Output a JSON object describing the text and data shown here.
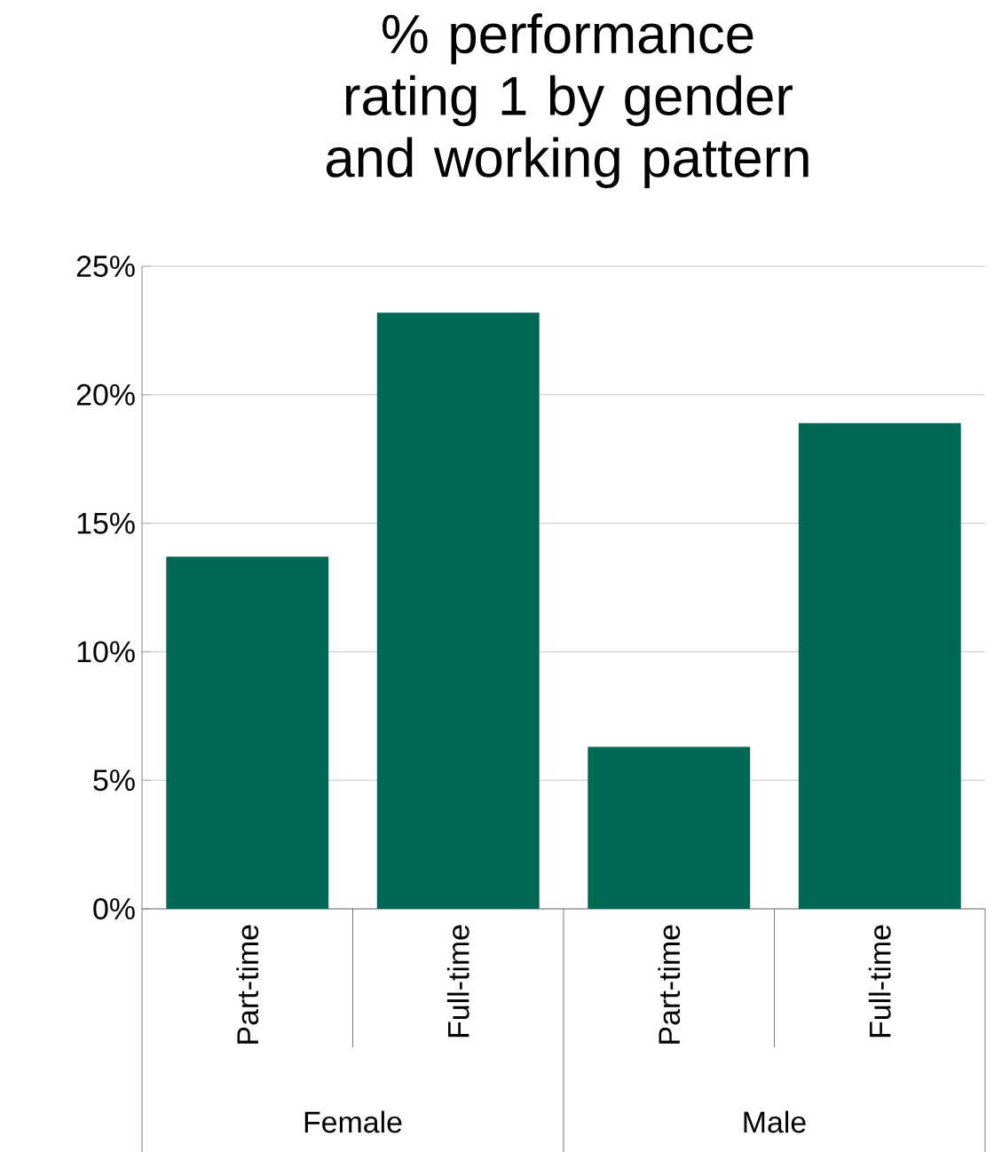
{
  "chart_data": {
    "type": "bar",
    "title": "% performance rating 1 by gender and working pattern",
    "categories": [
      "Part-time",
      "Full-time",
      "Part-time",
      "Full-time"
    ],
    "values": [
      13.7,
      23.2,
      6.3,
      18.9
    ],
    "color": "#006853",
    "ylim": [
      0,
      25
    ],
    "yticks": [
      {
        "value": 0,
        "label": "0%"
      },
      {
        "value": 5,
        "label": "5%"
      },
      {
        "value": 10,
        "label": "10%"
      },
      {
        "value": 15,
        "label": "15%"
      },
      {
        "value": 20,
        "label": "20%"
      },
      {
        "value": 25,
        "label": "25%"
      }
    ],
    "grid": "y",
    "annotations": [
      "Female",
      "Male"
    ]
  }
}
